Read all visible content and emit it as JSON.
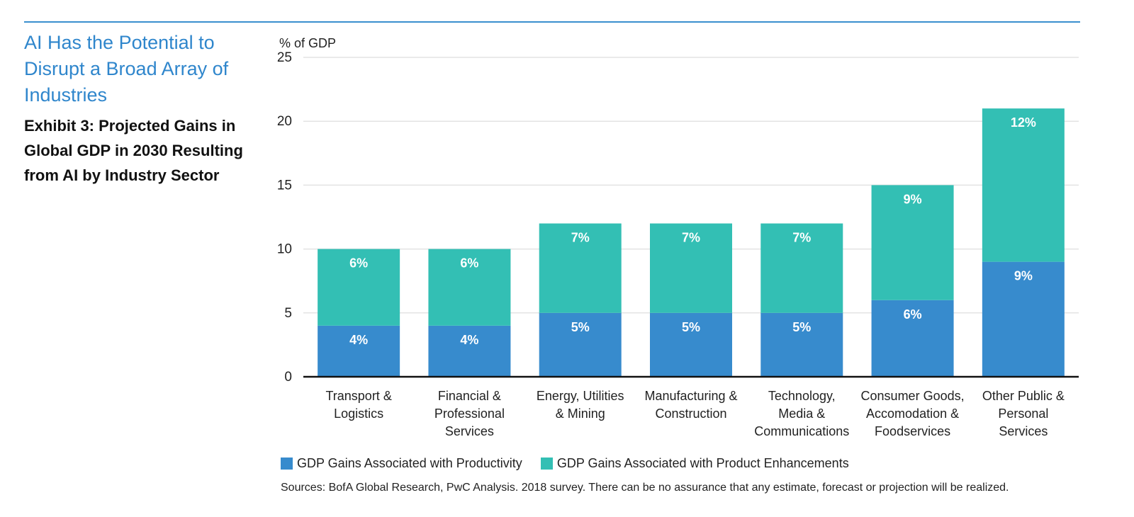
{
  "headline": "AI Has the Potential to Disrupt a Broad Array of Industries",
  "subhead": "Exhibit 3: Projected Gains in Global GDP in 2030 Resulting from AI by Industry Sector",
  "source": "Sources: BofA Global Research, PwC Analysis. 2018 survey. There can be no assurance that any estimate, forecast or projection will be realized.",
  "colors": {
    "accent": "#3a8fcf",
    "productivity": "#378bcd",
    "enhancements": "#33bfb4"
  },
  "chart_data": {
    "type": "bar",
    "stacked": true,
    "ylabel": "% of GDP",
    "ylim": [
      0,
      25
    ],
    "yticks": [
      0,
      5,
      10,
      15,
      20,
      25
    ],
    "grid": true,
    "legend_position": "bottom",
    "categories": [
      [
        "Transport &",
        "Logistics"
      ],
      [
        "Financial &",
        "Professional",
        "Services"
      ],
      [
        "Energy, Utilities",
        "& Mining"
      ],
      [
        "Manufacturing &",
        "Construction"
      ],
      [
        "Technology,",
        "Media &",
        "Communications"
      ],
      [
        "Consumer Goods,",
        "Accomodation &",
        "Foodservices"
      ],
      [
        "Other Public &",
        "Personal",
        "Services"
      ]
    ],
    "series": [
      {
        "name": "GDP Gains Associated with Productivity",
        "values": [
          4,
          4,
          5,
          5,
          5,
          6,
          9
        ],
        "labels": [
          "4%",
          "4%",
          "5%",
          "5%",
          "5%",
          "6%",
          "9%"
        ]
      },
      {
        "name": "GDP Gains Associated with Product Enhancements",
        "values": [
          6,
          6,
          7,
          7,
          7,
          9,
          12
        ],
        "labels": [
          "6%",
          "6%",
          "7%",
          "7%",
          "7%",
          "9%",
          "12%"
        ]
      }
    ]
  }
}
